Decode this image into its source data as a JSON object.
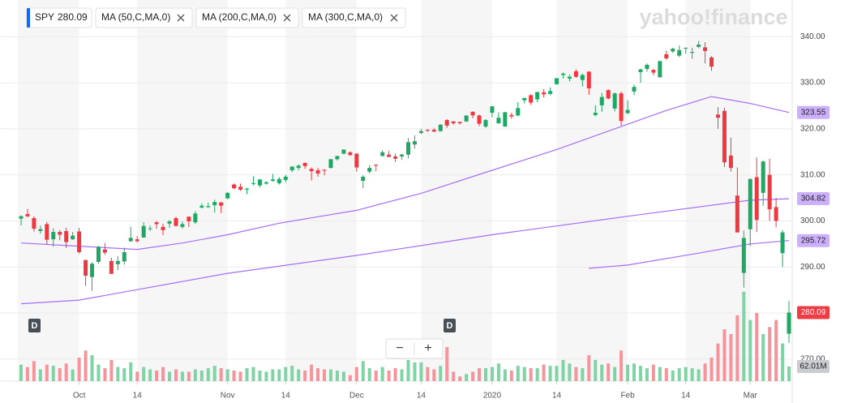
{
  "chart_data": {
    "type": "candlestick",
    "symbol": "SPY",
    "watermark": "yahoo!finance",
    "event_markers": [
      "D",
      "D"
    ],
    "zoom_controls": [
      "−",
      "+"
    ],
    "xlim": [
      -0.5,
      119.5
    ],
    "ylim": [
      265.2,
      347.1
    ],
    "vlim": [
      0,
      400
    ],
    "grid": true,
    "up_color": "#1ea863",
    "down_color": "#f2373f",
    "volume_up_color": "#7fd3a4",
    "volume_down_color": "#f5949b",
    "yticks": [
      {
        "value": 270,
        "label": "270.00"
      },
      {
        "value": 280,
        "label": "280.00"
      },
      {
        "value": 290,
        "label": "290.00"
      },
      {
        "value": 300,
        "label": "300.00"
      },
      {
        "value": 310,
        "label": "310.00"
      },
      {
        "value": 320,
        "label": "320.00"
      },
      {
        "value": 330,
        "label": "330.00"
      },
      {
        "value": 340,
        "label": "340.00"
      }
    ],
    "xticks": [
      {
        "value": 9,
        "label": "Oct"
      },
      {
        "value": 18,
        "label": "14"
      },
      {
        "value": 32,
        "label": "Nov"
      },
      {
        "value": 41,
        "label": "14"
      },
      {
        "value": 52,
        "label": "Dec"
      },
      {
        "value": 62,
        "label": "14"
      },
      {
        "value": 73,
        "label": "2020"
      },
      {
        "value": 83,
        "label": "14"
      },
      {
        "value": 94,
        "label": "Feb"
      },
      {
        "value": 103,
        "label": "14"
      },
      {
        "value": 113,
        "label": "Mar"
      }
    ],
    "open": [
      300.5,
      301.5,
      300.6,
      297.8,
      299.3,
      296.0,
      297.6,
      297.8,
      296.0,
      297.7,
      291.5,
      287.8,
      291.1,
      293.8,
      291.3,
      290.6,
      291.2,
      295.6,
      296.0,
      296.4,
      298.3,
      299.7,
      298.7,
      299.4,
      300.6,
      298.7,
      300.9,
      299.7,
      302.9,
      303.0,
      303.4,
      304.0,
      304.9,
      307.9,
      307.4,
      306.8,
      308.1,
      307.7,
      308.1,
      308.7,
      308.2,
      308.9,
      311.0,
      311.5,
      312.6,
      311.3,
      311.0,
      311.1,
      311.5,
      313.4,
      314.6,
      314.9,
      314.6,
      308.7,
      310.7,
      312.2,
      314.1,
      314.4,
      314.0,
      314.0,
      314.4,
      316.6,
      319.1,
      319.8,
      319.8,
      319.5,
      321.9,
      321.6,
      321.5,
      321.6,
      323.7,
      322.9,
      320.5,
      323.5,
      321.2,
      320.5,
      323.0,
      322.9,
      326.2,
      327.3,
      326.4,
      327.9,
      327.6,
      329.7,
      331.7,
      330.9,
      332.5,
      330.6,
      332.4,
      323.0,
      325.1,
      328.4,
      324.4,
      327.7,
      323.4,
      328.1,
      332.3,
      333.0,
      332.8,
      331.2,
      336.2,
      336.8,
      335.9,
      337.5,
      336.5,
      337.8,
      337.7,
      335.5,
      323.1,
      323.9,
      314.2,
      305.5,
      288.7,
      298.2,
      309.5,
      306.1,
      310.0,
      303.0,
      293.0,
      275.5
    ],
    "high": [
      301.2,
      302.6,
      301.0,
      299.0,
      299.8,
      298.4,
      298.0,
      298.5,
      297.6,
      298.5,
      291.5,
      291.0,
      294.6,
      295.2,
      292.0,
      292.3,
      294.2,
      298.7,
      296.7,
      299.7,
      299.0,
      300.0,
      299.4,
      300.2,
      300.9,
      299.9,
      301.0,
      302.1,
      303.8,
      304.0,
      304.6,
      304.1,
      306.2,
      308.1,
      308.1,
      307.2,
      309.7,
      309.1,
      308.6,
      310.2,
      309.5,
      310.0,
      311.8,
      312.3,
      312.7,
      311.6,
      311.5,
      311.2,
      313.4,
      314.1,
      315.5,
      315.1,
      314.7,
      309.9,
      312.1,
      312.3,
      315.3,
      315.2,
      314.6,
      314.6,
      318.0,
      318.6,
      320.0,
      319.9,
      320.2,
      321.0,
      322.1,
      321.7,
      321.5,
      322.9,
      323.8,
      323.1,
      322.1,
      324.9,
      323.6,
      323.7,
      323.5,
      325.8,
      326.7,
      327.5,
      328.0,
      328.6,
      329.0,
      331.0,
      332.2,
      331.8,
      332.9,
      332.0,
      332.5,
      325.1,
      327.8,
      328.6,
      327.9,
      328.1,
      326.2,
      329.6,
      333.1,
      334.2,
      333.0,
      334.8,
      337.0,
      337.6,
      338.1,
      337.7,
      337.6,
      339.1,
      338.8,
      335.8,
      324.7,
      324.6,
      318.1,
      311.6,
      297.9,
      309.2,
      313.8,
      313.1,
      313.5,
      305.0,
      298.0,
      282.6
    ],
    "low": [
      299.0,
      300.8,
      297.7,
      297.2,
      294.8,
      294.4,
      295.8,
      294.1,
      295.9,
      292.9,
      285.9,
      284.8,
      290.7,
      292.6,
      288.5,
      289.3,
      290.5,
      295.4,
      295.3,
      296.3,
      297.8,
      298.3,
      296.9,
      298.5,
      298.8,
      298.3,
      298.7,
      299.3,
      302.7,
      302.8,
      301.8,
      301.7,
      304.7,
      306.9,
      306.5,
      305.8,
      307.7,
      307.3,
      307.9,
      308.5,
      307.9,
      308.4,
      310.6,
      311.0,
      311.3,
      308.8,
      309.6,
      309.9,
      311.4,
      313.1,
      314.5,
      314.1,
      310.7,
      307.1,
      310.3,
      310.8,
      314.0,
      313.8,
      312.8,
      313.3,
      313.6,
      315.7,
      318.9,
      319.3,
      319.3,
      319.4,
      320.2,
      320.9,
      320.9,
      321.5,
      322.3,
      320.6,
      320.2,
      322.5,
      321.1,
      320.4,
      322.2,
      322.7,
      325.5,
      325.2,
      325.8,
      326.8,
      327.3,
      329.6,
      330.9,
      330.3,
      331.1,
      329.2,
      327.4,
      322.7,
      323.7,
      326.4,
      323.8,
      320.7,
      323.2,
      327.3,
      330.0,
      332.4,
      331.6,
      331.2,
      335.0,
      336.5,
      335.6,
      336.3,
      335.2,
      337.5,
      334.2,
      332.6,
      320.0,
      311.7,
      310.7,
      297.5,
      285.5,
      294.5,
      297.6,
      303.3,
      300.0,
      298.6,
      290.0,
      273.5
    ],
    "close": [
      301.0,
      301.0,
      298.3,
      298.2,
      295.9,
      297.6,
      297.0,
      295.4,
      296.8,
      293.2,
      288.1,
      290.7,
      294.4,
      293.1,
      288.5,
      291.3,
      293.2,
      296.3,
      295.6,
      298.9,
      298.4,
      299.3,
      298.0,
      299.9,
      298.9,
      299.3,
      299.9,
      301.6,
      303.3,
      303.2,
      304.1,
      303.3,
      306.1,
      307.1,
      306.8,
      307.0,
      308.2,
      309.0,
      308.4,
      309.0,
      309.1,
      309.6,
      311.8,
      312.0,
      311.9,
      310.8,
      310.3,
      311.0,
      313.4,
      314.1,
      315.5,
      314.3,
      311.6,
      309.6,
      311.5,
      312.0,
      314.9,
      313.9,
      313.5,
      314.4,
      317.1,
      317.3,
      319.5,
      319.6,
      319.4,
      320.9,
      320.7,
      321.2,
      321.2,
      322.9,
      322.9,
      321.1,
      321.9,
      324.9,
      322.4,
      323.6,
      322.7,
      324.5,
      326.7,
      325.7,
      328.0,
      327.5,
      328.2,
      331.0,
      332.0,
      331.3,
      331.3,
      331.7,
      328.8,
      323.5,
      326.9,
      326.6,
      327.7,
      321.7,
      324.1,
      329.1,
      332.9,
      333.9,
      332.2,
      334.7,
      335.3,
      337.4,
      337.1,
      337.6,
      336.7,
      338.3,
      336.9,
      333.5,
      322.4,
      312.7,
      311.5,
      297.5,
      296.3,
      309.1,
      300.2,
      312.9,
      302.5,
      300.0,
      297.5,
      280.09
    ],
    "volume": [
      70,
      60,
      85,
      50,
      70,
      65,
      55,
      75,
      50,
      100,
      130,
      110,
      70,
      55,
      90,
      60,
      55,
      80,
      40,
      60,
      50,
      45,
      60,
      40,
      50,
      40,
      40,
      50,
      45,
      55,
      65,
      55,
      50,
      45,
      40,
      55,
      60,
      45,
      40,
      50,
      50,
      60,
      65,
      50,
      45,
      70,
      55,
      50,
      50,
      45,
      40,
      25,
      60,
      85,
      55,
      45,
      60,
      45,
      55,
      50,
      90,
      80,
      80,
      60,
      50,
      65,
      145,
      40,
      20,
      30,
      40,
      55,
      55,
      60,
      75,
      50,
      45,
      65,
      60,
      55,
      55,
      70,
      65,
      65,
      90,
      75,
      60,
      55,
      110,
      90,
      70,
      75,
      60,
      130,
      70,
      75,
      65,
      55,
      70,
      60,
      55,
      45,
      55,
      60,
      55,
      50,
      75,
      100,
      160,
      220,
      200,
      280,
      380,
      260,
      290,
      200,
      230,
      260,
      160,
      62.01
    ],
    "volume_label": "62.01M",
    "series": [
      {
        "name": "MA (50,C,MA,0)",
        "color": "#a56ef6",
        "x": [
          0,
          9,
          18,
          25,
          32,
          40,
          52,
          62,
          73,
          83,
          94,
          100,
          107,
          113,
          119
        ],
        "values": [
          295.2,
          294.5,
          293.8,
          295.2,
          297,
          299.5,
          302.3,
          306,
          311,
          315.5,
          321,
          324,
          327,
          325.5,
          323.55
        ]
      },
      {
        "name": "MA (200,C,MA,0)",
        "color": "#a56ef6",
        "x": [
          0,
          9,
          32,
          52,
          73,
          94,
          113,
          119
        ],
        "values": [
          282,
          282.8,
          288.6,
          292.5,
          297,
          301,
          304.5,
          304.82
        ]
      },
      {
        "name": "MA (300,C,MA,0)",
        "color": "#a56ef6",
        "x": [
          88,
          94,
          105,
          113,
          119
        ],
        "values": [
          289.7,
          290.4,
          293,
          295,
          295.72
        ]
      }
    ]
  }
}
